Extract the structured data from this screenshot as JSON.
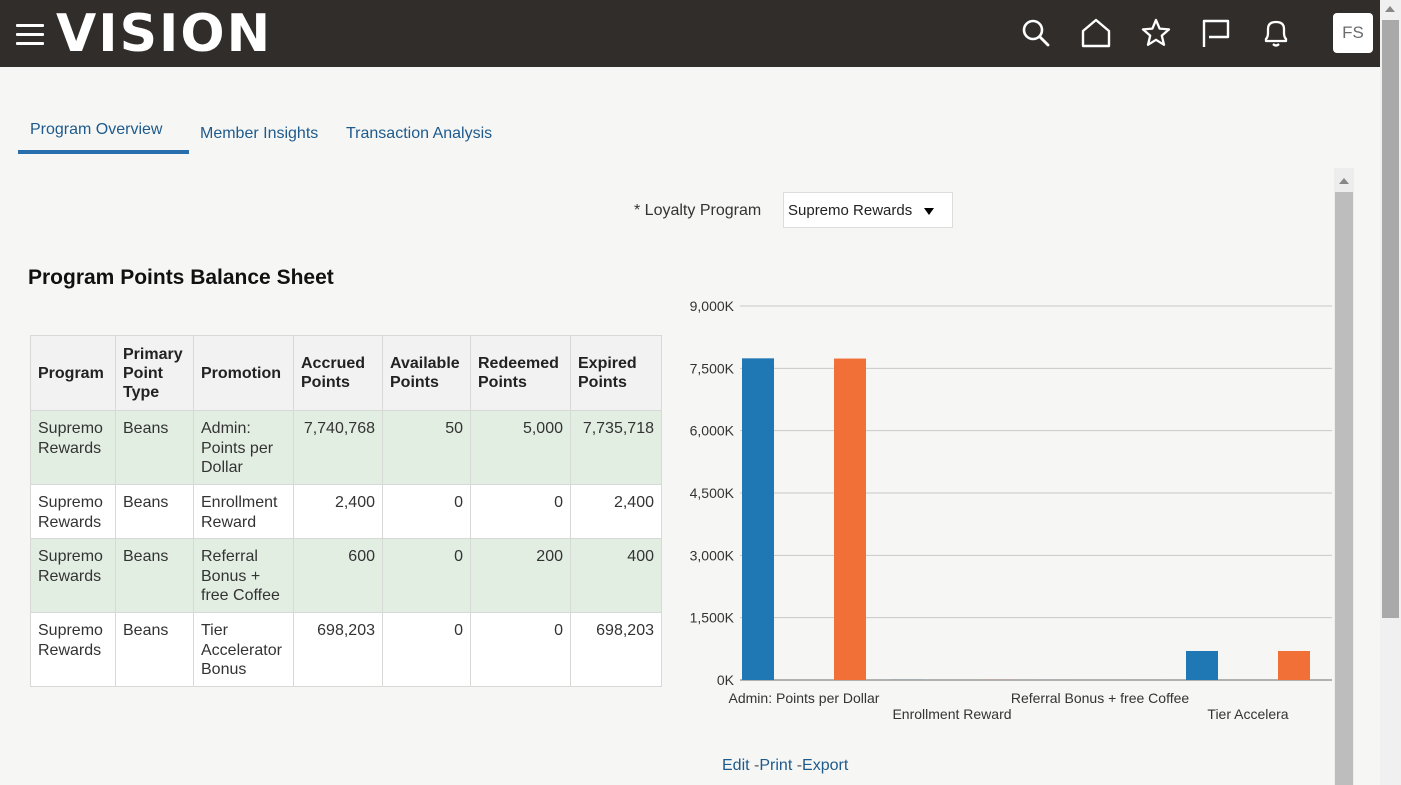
{
  "header": {
    "logo": "VISION",
    "icons": [
      "search-icon",
      "home-icon",
      "star-icon",
      "flag-icon",
      "bell-icon"
    ],
    "avatar_initials": "FS"
  },
  "tabs": [
    {
      "label": "Program Overview",
      "active": true
    },
    {
      "label": "Member Insights",
      "active": false
    },
    {
      "label": "Transaction Analysis",
      "active": false
    }
  ],
  "filter": {
    "label": "* Loyalty Program",
    "value": "Supremo Rewards"
  },
  "section_title": "Program Points Balance Sheet",
  "table": {
    "headers": [
      "Program",
      "Primary Point Type",
      "Promotion",
      "Accrued Points",
      "Available Points",
      "Redeemed Points",
      "Expired Points"
    ],
    "rows": [
      [
        "Supremo Rewards",
        "Beans",
        "Admin: Points per Dollar",
        "7,740,768",
        "50",
        "5,000",
        "7,735,718"
      ],
      [
        "Supremo Rewards",
        "Beans",
        "Enrollment Reward",
        "2,400",
        "0",
        "0",
        "2,400"
      ],
      [
        "Supremo Rewards",
        "Beans",
        "Referral Bonus + free Coffee",
        "600",
        "0",
        "200",
        "400"
      ],
      [
        "Supremo Rewards",
        "Beans",
        "Tier Accelerator Bonus",
        "698,203",
        "0",
        "0",
        "698,203"
      ]
    ]
  },
  "chart_data": {
    "type": "bar",
    "categories": [
      "Admin: Points per Dollar",
      "Enrollment Reward",
      "Referral Bonus + free Coffee",
      "Tier Accelera"
    ],
    "series": [
      {
        "values": [
          7740768,
          2400,
          600,
          698203
        ],
        "color": "#1f77b4"
      },
      {
        "values": [
          7735718,
          2400,
          400,
          698203
        ],
        "color": "#f07038"
      }
    ],
    "y_ticks": [
      "0K",
      "1,500K",
      "3,000K",
      "4,500K",
      "6,000K",
      "7,500K",
      "9,000K"
    ],
    "ylim": [
      0,
      9000000
    ],
    "grid": true
  },
  "chart_links": {
    "edit": "Edit",
    "print": "Print",
    "export": "Export",
    "separator": "-"
  }
}
